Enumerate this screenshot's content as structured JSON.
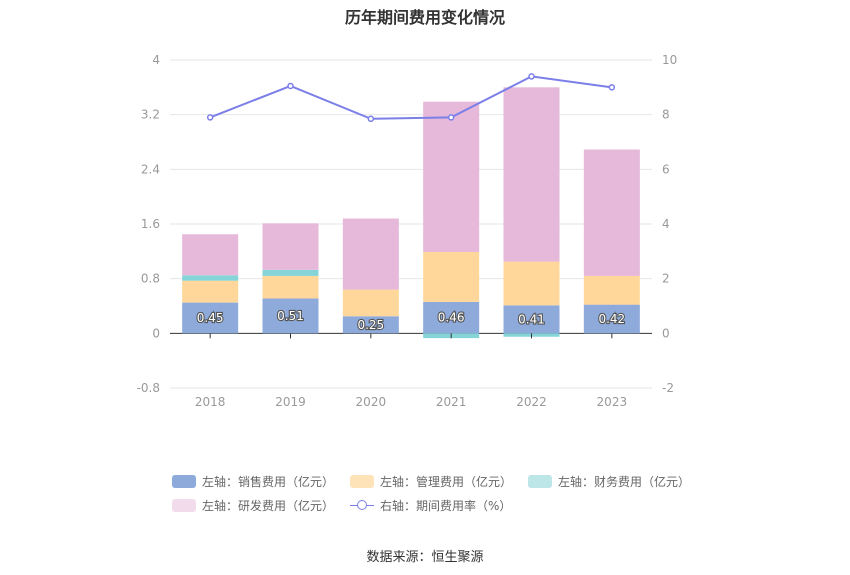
{
  "chart_data": {
    "type": "bar",
    "title": "历年期间费用变化情况",
    "categories": [
      "2018",
      "2019",
      "2020",
      "2021",
      "2022",
      "2023"
    ],
    "left_axis": {
      "ticks": [
        "4",
        "3.2",
        "2.4",
        "1.6",
        "0.8",
        "0",
        "-0.8"
      ],
      "ylim": [
        -0.8,
        4
      ]
    },
    "right_axis": {
      "ticks": [
        "10",
        "8",
        "6",
        "4",
        "2",
        "0",
        "-2"
      ],
      "ylim": [
        -2,
        10
      ]
    },
    "stacked": true,
    "series": [
      {
        "name": "左轴：销售费用（亿元）",
        "color": "#8DAADB",
        "values": [
          0.45,
          0.51,
          0.25,
          0.46,
          0.41,
          0.42
        ],
        "data_labels": [
          "0.45",
          "0.51",
          "0.25",
          "0.46",
          "0.41",
          "0.42"
        ]
      },
      {
        "name": "左轴：管理费用（亿元）",
        "color": "#FFD79A",
        "values": [
          0.32,
          0.33,
          0.39,
          0.73,
          0.64,
          0.42
        ]
      },
      {
        "name": "左轴：财务费用（亿元）",
        "color": "#85D4D8",
        "values": [
          0.08,
          0.09,
          0.0,
          -0.07,
          -0.05,
          0.0
        ]
      },
      {
        "name": "左轴：研发费用（亿元）",
        "color": "#E6B8D9",
        "values": [
          0.6,
          0.68,
          1.04,
          2.2,
          2.55,
          1.85
        ]
      }
    ],
    "line_series": {
      "name": "右轴：期间费用率（%）",
      "color": "#7B7FE8",
      "values": [
        7.9,
        9.05,
        7.85,
        7.9,
        9.4,
        9.0
      ]
    },
    "legend_position": "bottom",
    "grid": true
  },
  "source": "数据来源：恒生聚源"
}
